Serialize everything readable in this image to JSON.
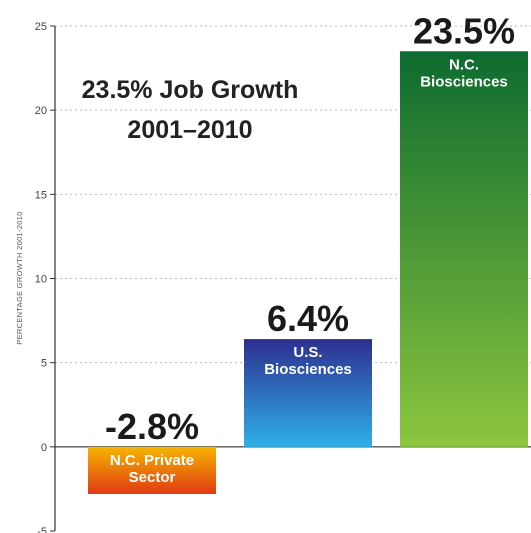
{
  "chart_data": {
    "type": "bar",
    "title_lines": [
      "23.5% Job Growth",
      "2001–2010"
    ],
    "ylabel": "PERCENTAGE GROWTH 2001-2010",
    "ylim": [
      -5,
      25
    ],
    "yticks": [
      -5,
      0,
      5,
      10,
      15,
      20,
      25
    ],
    "categories": [
      "N.C. Private Sector",
      "U.S. Biosciences",
      "N.C. Biosciences"
    ],
    "category_lines": [
      [
        "N.C. Private",
        "Sector"
      ],
      [
        "U.S.",
        "Biosciences"
      ],
      [
        "N.C.",
        "Biosciences"
      ]
    ],
    "values": [
      -2.8,
      6.4,
      23.5
    ],
    "value_labels": [
      "-2.8%",
      "6.4%",
      "23.5%"
    ],
    "grid": true,
    "colors": {
      "private_top": "#f6b400",
      "private_bottom": "#e03a12",
      "us_top": "#2d2f8f",
      "us_bottom": "#2fb0e8",
      "nc_top": "#0d6b30",
      "nc_bottom": "#8cc63e"
    }
  }
}
